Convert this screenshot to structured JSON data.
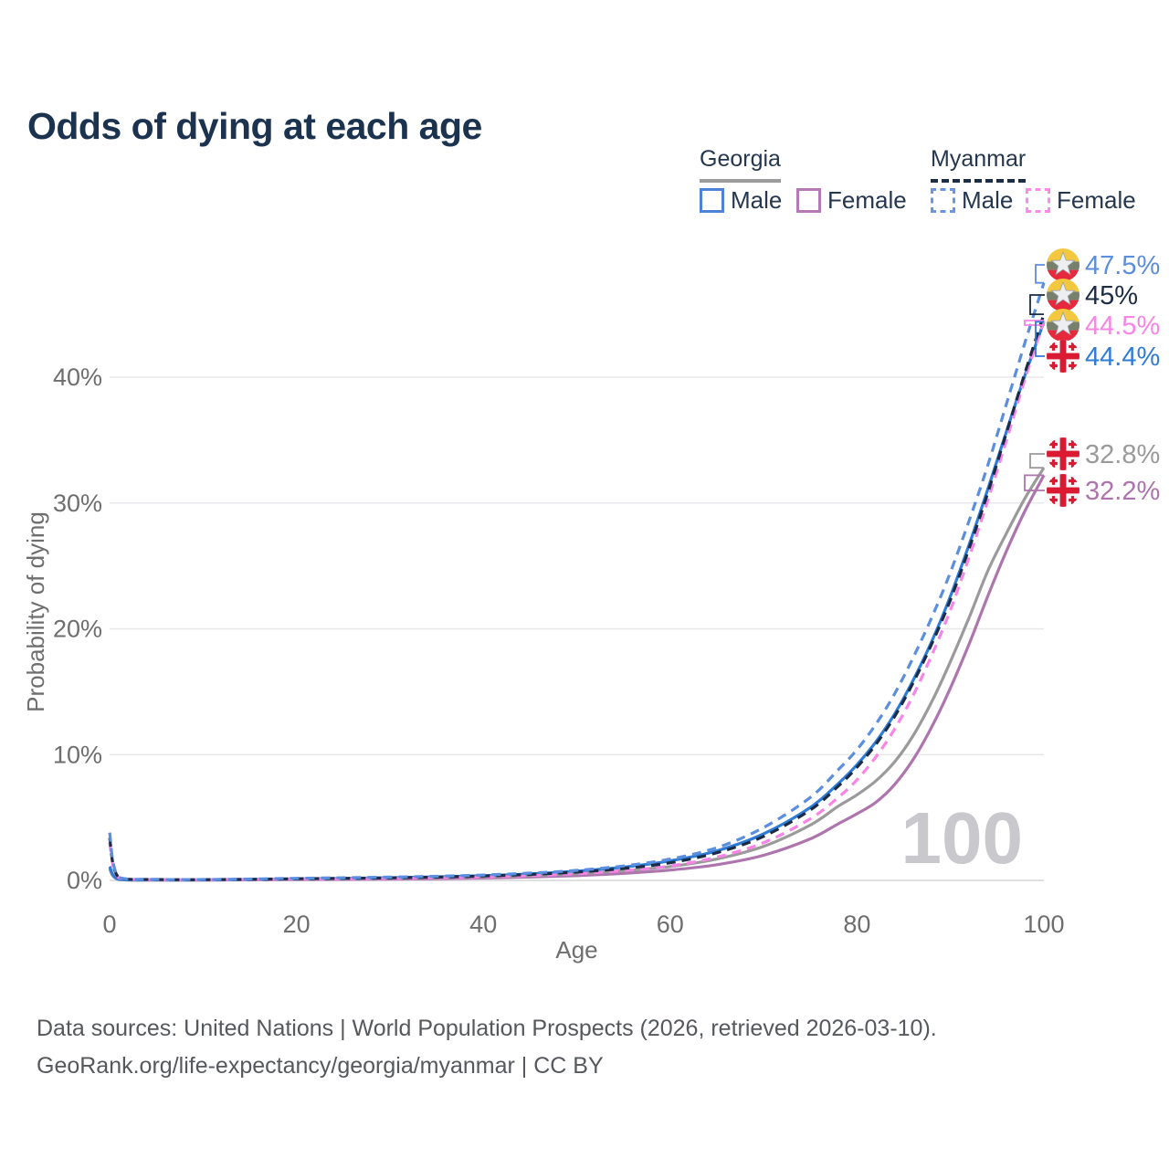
{
  "title": "Odds of dying at each age",
  "legend": {
    "groups": [
      {
        "label": "Georgia",
        "style": "solid",
        "underline_color": "#9b9b9b",
        "items": [
          {
            "label": "Male",
            "color": "#4e82d8",
            "dashed": false
          },
          {
            "label": "Female",
            "color": "#b57ab5",
            "dashed": false
          }
        ]
      },
      {
        "label": "Myanmar",
        "style": "dashed",
        "underline_color": "#1d2d44",
        "items": [
          {
            "label": "Male",
            "color": "#6b95e0",
            "dashed": true
          },
          {
            "label": "Female",
            "color": "#fb8ae9",
            "dashed": true
          }
        ]
      }
    ]
  },
  "watermark": "100",
  "footer": {
    "line1": "Data sources: United Nations | World Population Prospects (2026, retrieved 2026-03-10).",
    "line2": "GeoRank.org/life-expectancy/georgia/myanmar | CC BY"
  },
  "colors": {
    "title": "#1c3350",
    "axis_text": "#6e6e6e",
    "grid": "#e8e8ec",
    "baseline": "#d6d6da",
    "watermark": "#c9c9cd",
    "footer_text": "#55585c",
    "legend_text": "#25374e",
    "myanmar_flag": {
      "yellow": "#f3c83f",
      "green": "#76806c",
      "red": "#e6293c",
      "star": "#eceef0"
    },
    "georgia_flag": {
      "white": "#f6f6f6",
      "red": "#da1a32"
    }
  },
  "chart_data": {
    "type": "line",
    "title": "Odds of dying at each age",
    "xlabel": "Age",
    "ylabel": "Probability of dying",
    "xlim": [
      0,
      100
    ],
    "ylim": [
      0,
      48
    ],
    "x_ticks": [
      0,
      20,
      40,
      60,
      80,
      100
    ],
    "y_ticks_percent": [
      0,
      10,
      20,
      30,
      40
    ],
    "grid": "horizontal",
    "legend_position": "top-right",
    "highlighted_age": "100",
    "ages": [
      0,
      1,
      5,
      10,
      15,
      20,
      25,
      30,
      35,
      40,
      45,
      50,
      55,
      60,
      65,
      70,
      75,
      78,
      80,
      82,
      84,
      86,
      88,
      90,
      92,
      94,
      96,
      98,
      100
    ],
    "series": [
      {
        "id": "myanmar-male",
        "country": "Myanmar",
        "sex": "Male",
        "flag": "myanmar",
        "color": "#5b8ede",
        "dashed": true,
        "end_label": "47.5%",
        "end_value": 47.5,
        "values": [
          3.8,
          0.25,
          0.08,
          0.07,
          0.11,
          0.17,
          0.21,
          0.26,
          0.33,
          0.43,
          0.58,
          0.8,
          1.15,
          1.7,
          2.6,
          4.2,
          6.6,
          8.8,
          10.4,
          12.4,
          14.8,
          17.7,
          20.9,
          24.5,
          28.6,
          33.0,
          37.9,
          42.8,
          47.5
        ]
      },
      {
        "id": "myanmar-all",
        "country": "Myanmar",
        "sex": "All",
        "flag": "myanmar",
        "color": "#1c2c44",
        "dashed": true,
        "end_label": "45%",
        "end_value": 45.0,
        "values": [
          3.4,
          0.22,
          0.07,
          0.06,
          0.09,
          0.13,
          0.16,
          0.2,
          0.26,
          0.35,
          0.47,
          0.66,
          0.95,
          1.4,
          2.2,
          3.5,
          5.6,
          7.5,
          9.0,
          10.8,
          13.0,
          15.7,
          18.8,
          22.3,
          26.4,
          30.8,
          35.6,
          40.4,
          45.0
        ]
      },
      {
        "id": "myanmar-female",
        "country": "Myanmar",
        "sex": "Female",
        "flag": "myanmar",
        "color": "#f884e6",
        "dashed": true,
        "end_label": "44.5%",
        "end_value": 44.5,
        "values": [
          3.0,
          0.2,
          0.06,
          0.05,
          0.07,
          0.1,
          0.12,
          0.15,
          0.2,
          0.27,
          0.37,
          0.53,
          0.78,
          1.15,
          1.85,
          3.0,
          4.9,
          6.6,
          8.0,
          9.8,
          12.0,
          14.7,
          17.9,
          21.5,
          25.7,
          30.2,
          35.0,
          39.9,
          44.5
        ]
      },
      {
        "id": "georgia-male",
        "country": "Georgia",
        "sex": "Male",
        "flag": "georgia",
        "color": "#2e7cd6",
        "dashed": false,
        "end_label": "44.4%",
        "end_value": 44.4,
        "values": [
          1.1,
          0.09,
          0.04,
          0.04,
          0.07,
          0.12,
          0.16,
          0.21,
          0.28,
          0.38,
          0.52,
          0.74,
          1.05,
          1.55,
          2.35,
          3.7,
          5.8,
          7.7,
          9.2,
          11.0,
          13.2,
          15.9,
          19.0,
          22.6,
          26.7,
          31.1,
          35.7,
          40.2,
          44.4
        ]
      },
      {
        "id": "georgia-all",
        "country": "Georgia",
        "sex": "All",
        "flag": "georgia",
        "color": "#9a9a9a",
        "dashed": false,
        "end_label": "32.8%",
        "end_value": 32.8,
        "values": [
          1.0,
          0.08,
          0.03,
          0.03,
          0.05,
          0.09,
          0.12,
          0.16,
          0.21,
          0.28,
          0.38,
          0.54,
          0.77,
          1.1,
          1.7,
          2.7,
          4.4,
          5.9,
          6.8,
          7.9,
          9.4,
          11.5,
          14.2,
          17.4,
          20.9,
          24.6,
          27.6,
          30.4,
          32.8
        ]
      },
      {
        "id": "georgia-female",
        "country": "Georgia",
        "sex": "Female",
        "flag": "georgia",
        "color": "#ad74ad",
        "dashed": false,
        "end_label": "32.2%",
        "end_value": 32.2,
        "values": [
          0.9,
          0.07,
          0.03,
          0.02,
          0.04,
          0.06,
          0.08,
          0.1,
          0.14,
          0.19,
          0.27,
          0.38,
          0.56,
          0.82,
          1.25,
          2.0,
          3.3,
          4.5,
          5.3,
          6.2,
          7.6,
          9.6,
          12.2,
          15.3,
          18.8,
          22.6,
          26.2,
          29.4,
          32.2
        ]
      }
    ]
  }
}
